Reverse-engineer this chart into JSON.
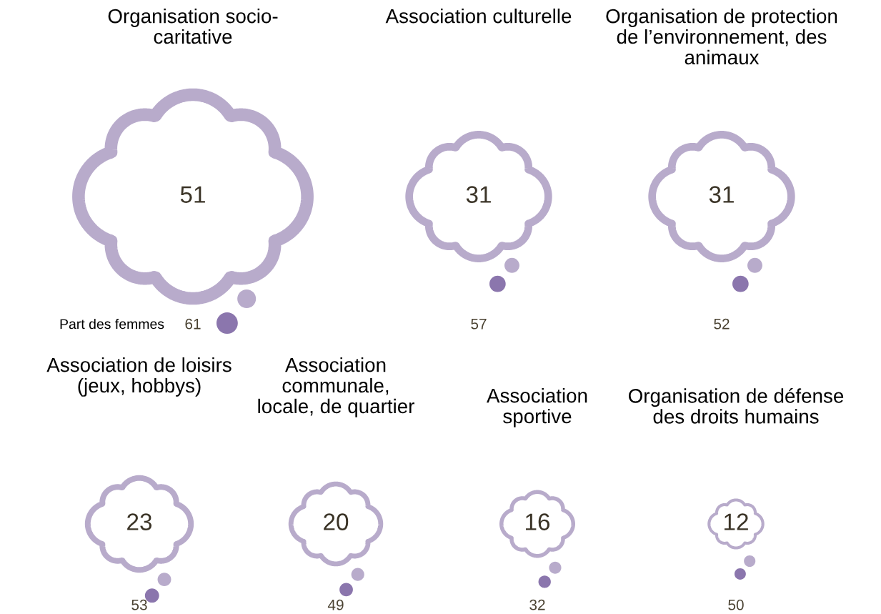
{
  "chart_data": {
    "type": "other",
    "data_labels": true,
    "categories": [
      "Organisation socio-\ncaritative",
      "Association culturelle",
      "Organisation de protection\nde l’environnement, des\nanimaux",
      "Association de loisirs\n(jeux, hobbys)",
      "Association\ncommunale,\nlocale, de quartier",
      "Association\nsportive",
      "Organisation de défense\ndes droits humains"
    ],
    "series": [
      {
        "color": "#b8abcb",
        "values": [
          51,
          31,
          31,
          23,
          20,
          16,
          12
        ]
      },
      {
        "name": "Part des femmes",
        "values": [
          61,
          57,
          52,
          53,
          49,
          32,
          50
        ]
      }
    ]
  }
}
